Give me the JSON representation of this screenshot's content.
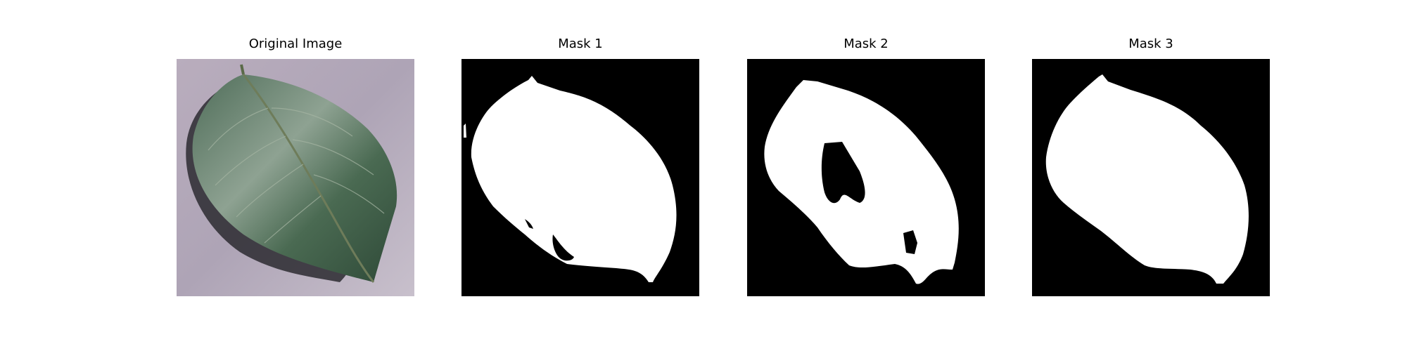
{
  "panels": [
    {
      "title": "Original Image",
      "kind": "photo"
    },
    {
      "title": "Mask 1",
      "kind": "mask"
    },
    {
      "title": "Mask 2",
      "kind": "mask"
    },
    {
      "title": "Mask 3",
      "kind": "mask"
    }
  ],
  "colors": {
    "background": "#b7adbc",
    "leaf_dark": "#3d5846",
    "leaf_light": "#8ea292",
    "shadow": "#2a2a2e",
    "mask_background": "#000000",
    "mask_foreground": "#ffffff"
  }
}
